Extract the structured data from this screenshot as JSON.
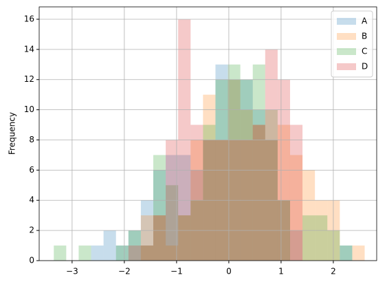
{
  "chart_data": {
    "type": "histogram",
    "ylabel": "Frequency",
    "bins": [
      -3.35,
      -3.112,
      -2.874,
      -2.636,
      -2.398,
      -2.16,
      -1.922,
      -1.684,
      -1.446,
      -1.208,
      -0.97,
      -0.732,
      -0.494,
      -0.256,
      -0.018,
      0.22,
      0.458,
      0.696,
      0.934,
      1.172,
      1.41,
      1.648,
      1.886,
      2.124,
      2.362,
      2.6
    ],
    "series": [
      {
        "name": "A",
        "color": "#1f77b4",
        "values": [
          0,
          0,
          0,
          1,
          2,
          1,
          2,
          4,
          6,
          7,
          7,
          6,
          8,
          13,
          12,
          12,
          10,
          8,
          4,
          2,
          0,
          0,
          0,
          1,
          0
        ]
      },
      {
        "name": "B",
        "color": "#ff7f0e",
        "values": [
          0,
          0,
          0,
          0,
          0,
          0,
          0,
          3,
          3,
          1,
          3,
          8,
          11,
          8,
          12,
          10,
          9,
          8,
          9,
          7,
          6,
          4,
          4,
          0,
          1
        ]
      },
      {
        "name": "C",
        "color": "#2ca02c",
        "values": [
          1,
          0,
          1,
          0,
          0,
          1,
          2,
          1,
          7,
          5,
          3,
          4,
          9,
          12,
          13,
          12,
          13,
          10,
          4,
          0,
          3,
          3,
          2,
          1,
          0
        ]
      },
      {
        "name": "D",
        "color": "#d62728",
        "values": [
          0,
          0,
          0,
          0,
          0,
          0,
          1,
          1,
          3,
          8,
          16,
          9,
          8,
          8,
          8,
          8,
          9,
          14,
          12,
          9,
          0,
          0,
          0,
          0,
          0
        ]
      }
    ],
    "alpha": 0.25,
    "xlim": [
      -3.63,
      2.83
    ],
    "ylim": [
      0,
      16.82
    ],
    "xticks": [
      {
        "value": -3,
        "label": "−3"
      },
      {
        "value": -2,
        "label": "−2"
      },
      {
        "value": -1,
        "label": "−1"
      },
      0,
      1,
      2
    ],
    "yticks": [
      0,
      2,
      4,
      6,
      8,
      10,
      12,
      14,
      16
    ],
    "grid": true,
    "legend": "upper right"
  }
}
